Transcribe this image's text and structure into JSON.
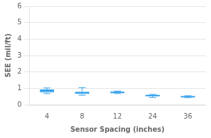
{
  "chart_data": {
    "type": "box",
    "xlabel": "Sensor Spacing (inches)",
    "ylabel": "SEE (mil/ft)",
    "categories": [
      "4",
      "8",
      "12",
      "24",
      "36"
    ],
    "boxes": [
      {
        "whislo": 0.68,
        "q1": 0.74,
        "med": 0.84,
        "q3": 0.93,
        "whishi": 1.02
      },
      {
        "whislo": 0.58,
        "q1": 0.65,
        "med": 0.72,
        "q3": 0.79,
        "whishi": 1.04
      },
      {
        "whislo": 0.68,
        "q1": 0.71,
        "med": 0.75,
        "q3": 0.79,
        "whishi": 0.83
      },
      {
        "whislo": 0.44,
        "q1": 0.52,
        "med": 0.56,
        "q3": 0.59,
        "whishi": 0.63
      },
      {
        "whislo": 0.43,
        "q1": 0.46,
        "med": 0.49,
        "q3": 0.52,
        "whishi": 0.55
      }
    ],
    "ylim": [
      0,
      6
    ],
    "yticks": [
      0,
      1,
      2,
      3,
      4,
      5,
      6
    ],
    "grid": "y"
  }
}
